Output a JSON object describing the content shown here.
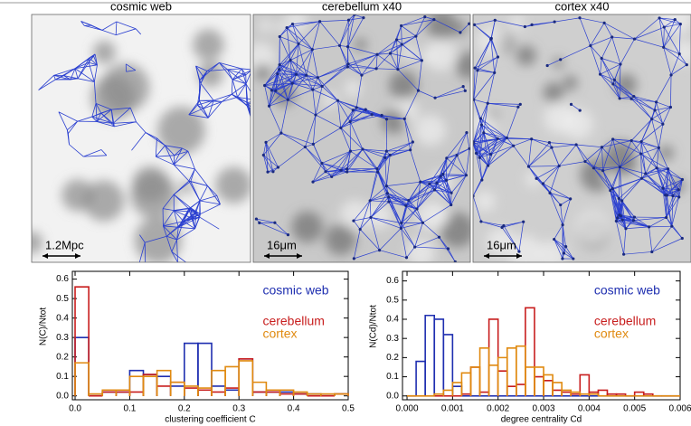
{
  "panels": [
    {
      "title": "cosmic web",
      "scale": "1.2Mpc"
    },
    {
      "title": "cerebellum x40",
      "scale": "16μm"
    },
    {
      "title": "cortex x40",
      "scale": "16μm"
    }
  ],
  "chart_data": [
    {
      "type": "histogram",
      "xlabel": "clustering coefficient C",
      "ylabel": "N(C)/Ntot",
      "xlim": [
        -0.005,
        0.5
      ],
      "ylim": [
        -0.02,
        0.64
      ],
      "xticks": [
        {
          "value": 0,
          "label": "0.0"
        },
        0.1,
        0.2,
        0.3,
        0.4,
        0.5
      ],
      "yticks": [
        {
          "value": 0,
          "label": "0.0"
        },
        0.1,
        0.2,
        0.3,
        0.4,
        0.5,
        0.6
      ],
      "bins": [
        0,
        0.025,
        0.05,
        0.075,
        0.1,
        0.125,
        0.15,
        0.175,
        0.2,
        0.225,
        0.25,
        0.275,
        0.3,
        0.325,
        0.35,
        0.375,
        0.4,
        0.425,
        0.45,
        0.475,
        0.5
      ],
      "series": [
        {
          "name": "cosmic web",
          "color": "#1f2fb0",
          "values": [
            0.3,
            0.0,
            0.02,
            0.02,
            0.13,
            0.11,
            0.1,
            0.05,
            0.27,
            0.27,
            0.05,
            0.03,
            0.19,
            0.02,
            0.02,
            0.02,
            0.01,
            0.01,
            0.0,
            0.01
          ]
        },
        {
          "name": "cerebellum",
          "color": "#c81e1e",
          "values": [
            0.56,
            0.0,
            0.02,
            0.02,
            0.02,
            0.11,
            0.05,
            0.07,
            0.04,
            0.03,
            0.02,
            0.04,
            0.19,
            0.02,
            0.02,
            0.01,
            0.01,
            0.0,
            0.0,
            0.01
          ]
        },
        {
          "name": "cortex",
          "color": "#e08a10",
          "values": [
            0.17,
            0.01,
            0.03,
            0.03,
            0.1,
            0.1,
            0.13,
            0.07,
            0.05,
            0.04,
            0.13,
            0.15,
            0.18,
            0.07,
            0.03,
            0.03,
            0.02,
            0.01,
            0.01,
            0.01
          ]
        }
      ]
    },
    {
      "type": "histogram",
      "xlabel": "degree centrality Cd",
      "ylabel": "N(Cd)/Ntot",
      "xlim": [
        -0.0001,
        0.006
      ],
      "ylim": [
        -0.02,
        0.65
      ],
      "xticks": [
        {
          "value": 0,
          "label": "0.000"
        },
        {
          "value": 0.001,
          "label": "0.001"
        },
        {
          "value": 0.002,
          "label": "0.002"
        },
        {
          "value": 0.003,
          "label": "0.003"
        },
        {
          "value": 0.004,
          "label": "0.004"
        },
        {
          "value": 0.005,
          "label": "0.005"
        },
        {
          "value": 0.006,
          "label": "0.006"
        }
      ],
      "yticks": [
        {
          "value": 0,
          "label": "0.0"
        },
        0.1,
        0.2,
        0.3,
        0.4,
        0.5,
        0.6
      ],
      "bins": [
        0,
        0.0002,
        0.0004,
        0.0006,
        0.0008,
        0.001,
        0.0012,
        0.0014,
        0.0016,
        0.0018,
        0.002,
        0.0022,
        0.0024,
        0.0026,
        0.0028,
        0.003,
        0.0032,
        0.0034,
        0.0036,
        0.0038,
        0.004,
        0.0042,
        0.0044,
        0.0046,
        0.0048,
        0.005,
        0.0052,
        0.0054,
        0.0056,
        0.0058,
        0.006
      ],
      "series": [
        {
          "name": "cosmic web",
          "color": "#1f2fb0",
          "values": [
            0.0,
            0.18,
            0.42,
            0.4,
            0.32,
            0.05,
            0.0,
            0.0,
            0.0,
            0.0,
            0.0,
            0.0,
            0.0,
            0.0,
            0.0,
            0.0,
            0.0,
            0.0,
            0.0,
            0.0,
            0.0,
            0.0,
            0.0,
            0.0,
            0.0,
            0.0,
            0.0,
            0.0,
            0.0,
            0.0
          ]
        },
        {
          "name": "cerebellum",
          "color": "#c81e1e",
          "values": [
            0.0,
            0.0,
            0.0,
            0.0,
            0.0,
            0.0,
            0.01,
            0.15,
            0.02,
            0.4,
            0.13,
            0.05,
            0.06,
            0.46,
            0.1,
            0.08,
            0.03,
            0.02,
            0.01,
            0.11,
            0.02,
            0.03,
            0.01,
            0.01,
            0.0,
            0.02,
            0.01,
            0.0,
            0.0,
            0.0
          ]
        },
        {
          "name": "cortex",
          "color": "#e08a10",
          "values": [
            0.0,
            0.0,
            0.0,
            0.01,
            0.03,
            0.07,
            0.12,
            0.15,
            0.25,
            0.16,
            0.2,
            0.25,
            0.26,
            0.15,
            0.15,
            0.11,
            0.07,
            0.03,
            0.02,
            0.01,
            0.01,
            0.0,
            0.0,
            0.0,
            0.0,
            0.0,
            0.0,
            0.0,
            0.0,
            0.0
          ]
        }
      ]
    }
  ]
}
